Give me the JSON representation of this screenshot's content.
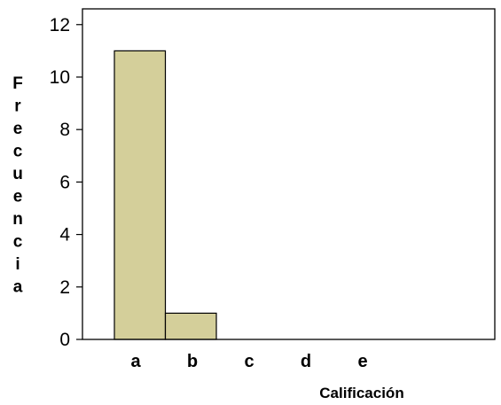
{
  "chart_data": {
    "type": "bar",
    "categories": [
      "a",
      "b",
      "c",
      "d",
      "e"
    ],
    "values": [
      11,
      1,
      0,
      0,
      0
    ],
    "xlabel": "Calificación",
    "ylabel": "Frecuencia",
    "ylim": [
      0,
      12.6
    ],
    "yticks": [
      "0",
      "2",
      "4",
      "6",
      "8",
      "10",
      "12"
    ],
    "bar_color": "#d4cf9a",
    "bar_edge_color": "#000000",
    "grid": false,
    "legend": "none"
  }
}
